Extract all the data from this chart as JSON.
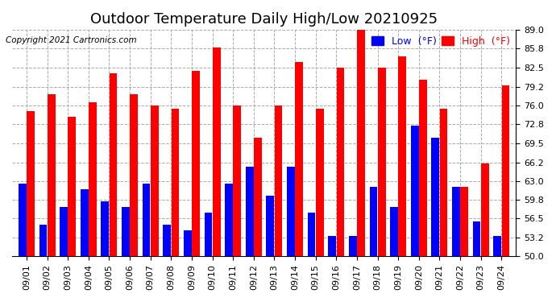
{
  "title": "Outdoor Temperature Daily High/Low 20210925",
  "copyright": "Copyright 2021 Cartronics.com",
  "dates": [
    "09/01",
    "09/02",
    "09/03",
    "09/04",
    "09/05",
    "09/06",
    "09/07",
    "09/08",
    "09/09",
    "09/10",
    "09/11",
    "09/12",
    "09/13",
    "09/14",
    "09/15",
    "09/16",
    "09/17",
    "09/18",
    "09/19",
    "09/20",
    "09/21",
    "09/22",
    "09/23",
    "09/24"
  ],
  "highs": [
    75.0,
    78.0,
    74.0,
    76.5,
    81.5,
    78.0,
    76.0,
    75.5,
    82.0,
    86.0,
    76.0,
    70.5,
    76.0,
    83.5,
    75.5,
    82.5,
    89.0,
    82.5,
    84.5,
    80.5,
    75.5,
    62.0,
    66.0,
    79.5
  ],
  "lows": [
    62.5,
    55.5,
    58.5,
    61.5,
    59.5,
    58.5,
    62.5,
    55.5,
    54.5,
    57.5,
    62.5,
    65.5,
    60.5,
    65.5,
    57.5,
    53.5,
    53.5,
    62.0,
    58.5,
    72.5,
    70.5,
    62.0,
    56.0,
    53.5
  ],
  "high_color": "#ff0000",
  "low_color": "#0000ff",
  "ylim_min": 50.0,
  "ylim_max": 89.0,
  "yticks": [
    50.0,
    53.2,
    56.5,
    59.8,
    63.0,
    66.2,
    69.5,
    72.8,
    76.0,
    79.2,
    82.5,
    85.8,
    89.0
  ],
  "background_color": "#ffffff",
  "grid_color": "#aaaaaa",
  "title_fontsize": 13,
  "tick_fontsize": 8,
  "copyright_fontsize": 7.5,
  "legend_fontsize": 9,
  "bar_width": 0.38,
  "bar_gap": 0.02
}
